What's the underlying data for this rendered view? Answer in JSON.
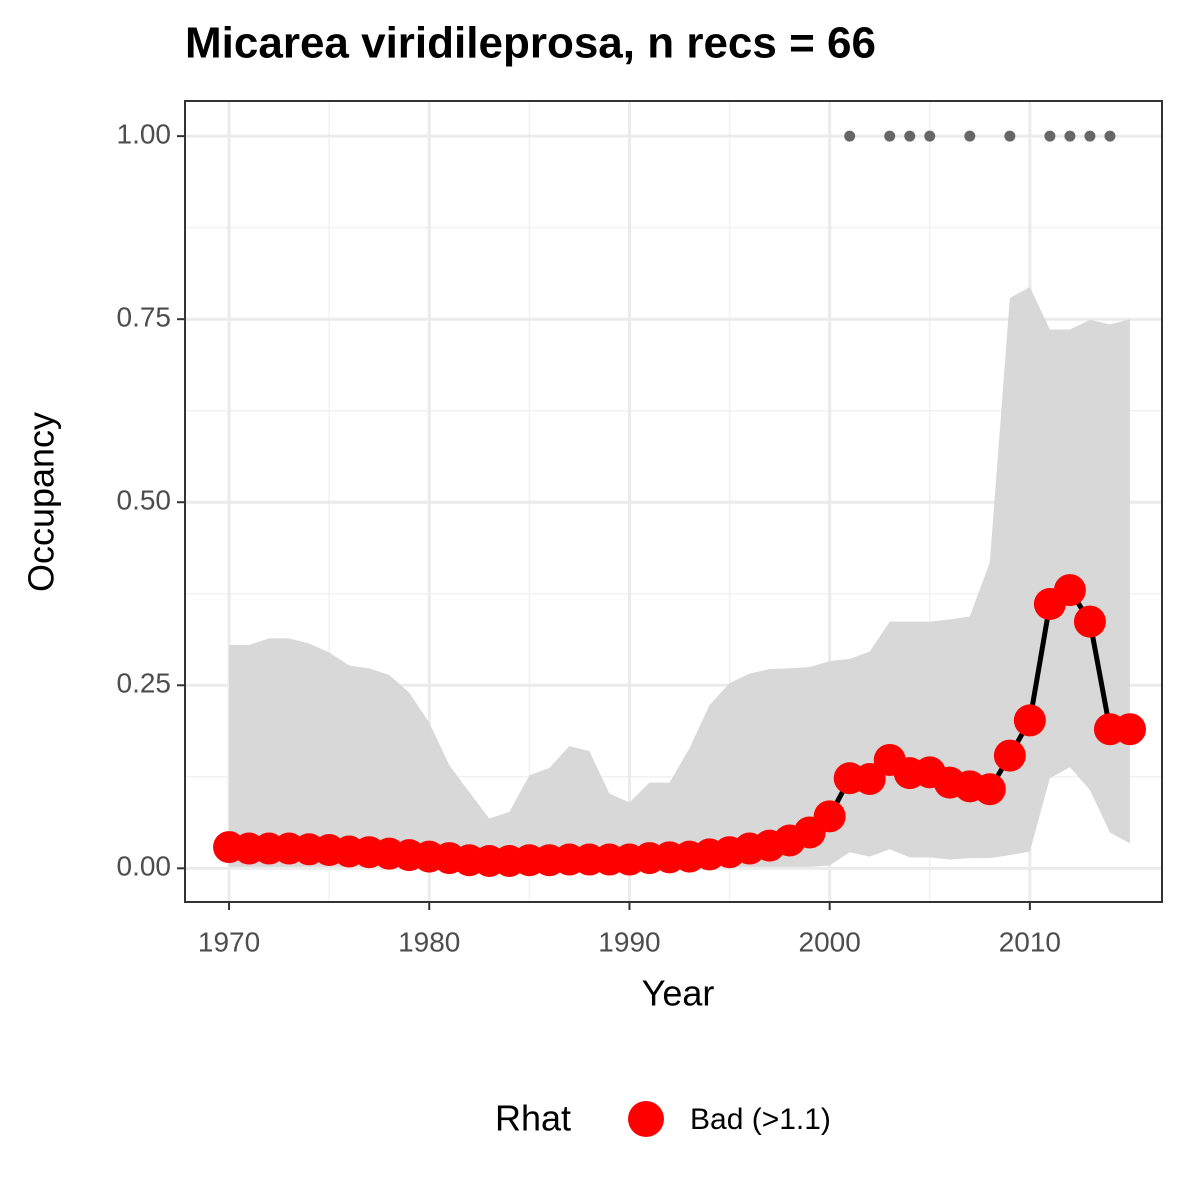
{
  "chart_data": {
    "type": "line",
    "title": "Micarea viridileprosa, n recs = 66",
    "xlabel": "Year",
    "ylabel": "Occupancy",
    "x": [
      1970,
      1971,
      1972,
      1973,
      1974,
      1975,
      1976,
      1977,
      1978,
      1979,
      1980,
      1981,
      1982,
      1983,
      1984,
      1985,
      1986,
      1987,
      1988,
      1989,
      1990,
      1991,
      1992,
      1993,
      1994,
      1995,
      1996,
      1997,
      1998,
      1999,
      2000,
      2001,
      2002,
      2003,
      2004,
      2005,
      2006,
      2007,
      2008,
      2009,
      2010,
      2011,
      2012,
      2013,
      2014,
      2015
    ],
    "series": [
      {
        "name": "Bad (>1.1)",
        "color": "#ff0000",
        "values": [
          0.029,
          0.027,
          0.027,
          0.027,
          0.026,
          0.025,
          0.023,
          0.022,
          0.02,
          0.018,
          0.016,
          0.014,
          0.011,
          0.01,
          0.01,
          0.011,
          0.011,
          0.012,
          0.012,
          0.012,
          0.012,
          0.014,
          0.015,
          0.016,
          0.019,
          0.022,
          0.027,
          0.031,
          0.038,
          0.049,
          0.071,
          0.123,
          0.122,
          0.148,
          0.13,
          0.131,
          0.117,
          0.112,
          0.108,
          0.154,
          0.202,
          0.361,
          0.38,
          0.337,
          0.19,
          0.19
        ]
      }
    ],
    "lower": [
      0.002,
      0.002,
      0.002,
      0.002,
      0.002,
      0.002,
      0.002,
      0.002,
      0.002,
      0.002,
      0.002,
      0.002,
      0.002,
      0.002,
      0.002,
      0.002,
      0.002,
      0.002,
      0.002,
      0.002,
      0.002,
      0.002,
      0.002,
      0.002,
      0.002,
      0.002,
      0.002,
      0.002,
      0.002,
      0.002,
      0.004,
      0.022,
      0.016,
      0.026,
      0.015,
      0.015,
      0.012,
      0.014,
      0.014,
      0.018,
      0.023,
      0.123,
      0.138,
      0.107,
      0.049,
      0.034
    ],
    "upper": [
      0.305,
      0.305,
      0.314,
      0.314,
      0.307,
      0.295,
      0.277,
      0.273,
      0.264,
      0.24,
      0.199,
      0.141,
      0.104,
      0.068,
      0.077,
      0.127,
      0.137,
      0.167,
      0.16,
      0.102,
      0.09,
      0.117,
      0.117,
      0.164,
      0.223,
      0.253,
      0.266,
      0.272,
      0.273,
      0.275,
      0.283,
      0.286,
      0.296,
      0.337,
      0.337,
      0.337,
      0.34,
      0.344,
      0.418,
      0.779,
      0.794,
      0.736,
      0.736,
      0.749,
      0.743,
      0.75
    ],
    "band_color": "#d6d6d6",
    "records": {
      "x": [
        2001,
        2003,
        2004,
        2005,
        2007,
        2009,
        2011,
        2012,
        2013,
        2014
      ],
      "values": [
        1,
        1,
        1,
        1,
        1,
        1,
        1,
        1,
        1,
        1
      ],
      "color": "#666666"
    },
    "legend_title": "Rhat",
    "legend": "bottom",
    "xlim": [
      1967.8,
      2016.6
    ],
    "xticks": [
      1970,
      1980,
      1990,
      2000,
      2010
    ],
    "ylim": [
      -0.046,
      1.048
    ],
    "yticks": [
      {
        "value": 0,
        "label": "0.00"
      },
      {
        "value": 0.25,
        "label": "0.25"
      },
      {
        "value": 0.5,
        "label": "0.50"
      },
      {
        "value": 0.75,
        "label": "0.75"
      },
      {
        "value": 1,
        "label": "1.00"
      }
    ],
    "grid": true
  }
}
